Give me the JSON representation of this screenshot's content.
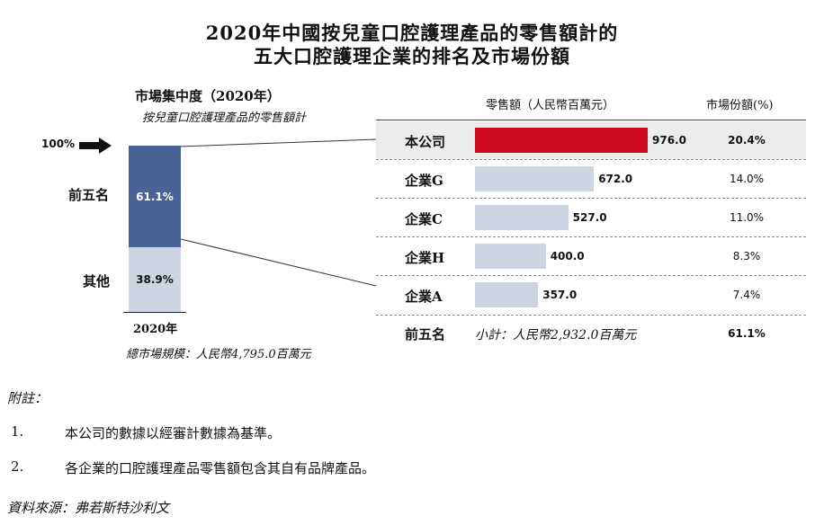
{
  "title_line1": "2020年中國按兒童口腔護理產品的零售額計的",
  "title_line2": "五大口腔護理企業的排名及市場份額",
  "left_panel": {
    "title": "市場集中度（2020年）",
    "subtitle": "按兒童口腔護理產品的零售額計",
    "arrow_label": "100%",
    "top_label": "前五名",
    "top_value": "61.1%",
    "top_share": 61.1,
    "bottom_label": "其他",
    "bottom_value": "38.9%",
    "bottom_share": 38.9,
    "year": "2020年",
    "total": "總市場規模：人民幣4,795.0百萬元"
  },
  "table": {
    "col_sales": "零售額（人民幣百萬元）",
    "col_share": "市場份額(%)",
    "rows": [
      {
        "name": "本公司",
        "value": 976.0,
        "value_text": "976.0",
        "share": "20.4%",
        "highlight": true
      },
      {
        "name": "企業G",
        "value": 672.0,
        "value_text": "672.0",
        "share": "14.0%",
        "highlight": false
      },
      {
        "name": "企業C",
        "value": 527.0,
        "value_text": "527.0",
        "share": "11.0%",
        "highlight": false
      },
      {
        "name": "企業H",
        "value": 400.0,
        "value_text": "400.0",
        "share": "8.3%",
        "highlight": false
      },
      {
        "name": "企業A",
        "value": 357.0,
        "value_text": "357.0",
        "share": "7.4%",
        "highlight": false
      }
    ],
    "total_label": "前五名",
    "subtotal": "小計：人民幣2,932.0百萬元",
    "total_share": "61.1%"
  },
  "notes": {
    "heading": "附註：",
    "items": [
      {
        "num": "1.",
        "text": "本公司的數據以經審計數據為基準。"
      },
      {
        "num": "2.",
        "text": "各企業的口腔護理產品零售額包含其自有品牌產品。"
      }
    ],
    "source": "資料來源：弗若斯特沙利文"
  },
  "colors": {
    "highlight_bar": "#cc0a1e",
    "other_bar": "#cdd5e3",
    "stack_top": "#4a6296",
    "stack_bottom": "#cdd5e3",
    "highlight_row_bg": "#ececec"
  },
  "chart_data": [
    {
      "type": "bar",
      "stacked": true,
      "title": "市場集中度（2020年）",
      "subtitle": "按兒童口腔護理產品的零售額計",
      "categories": [
        "2020年"
      ],
      "series": [
        {
          "name": "前五名",
          "values": [
            61.1
          ]
        },
        {
          "name": "其他",
          "values": [
            38.9
          ]
        }
      ],
      "ylim": [
        0,
        100
      ]
    },
    {
      "type": "bar",
      "orientation": "horizontal",
      "categories": [
        "本公司",
        "企業G",
        "企業C",
        "企業H",
        "企業A"
      ],
      "values": [
        976.0,
        672.0,
        527.0,
        400.0,
        357.0
      ],
      "xlabel": "零售額（人民幣百萬元）",
      "market_share_percent": [
        20.4,
        14.0,
        11.0,
        8.3,
        7.4
      ]
    }
  ]
}
